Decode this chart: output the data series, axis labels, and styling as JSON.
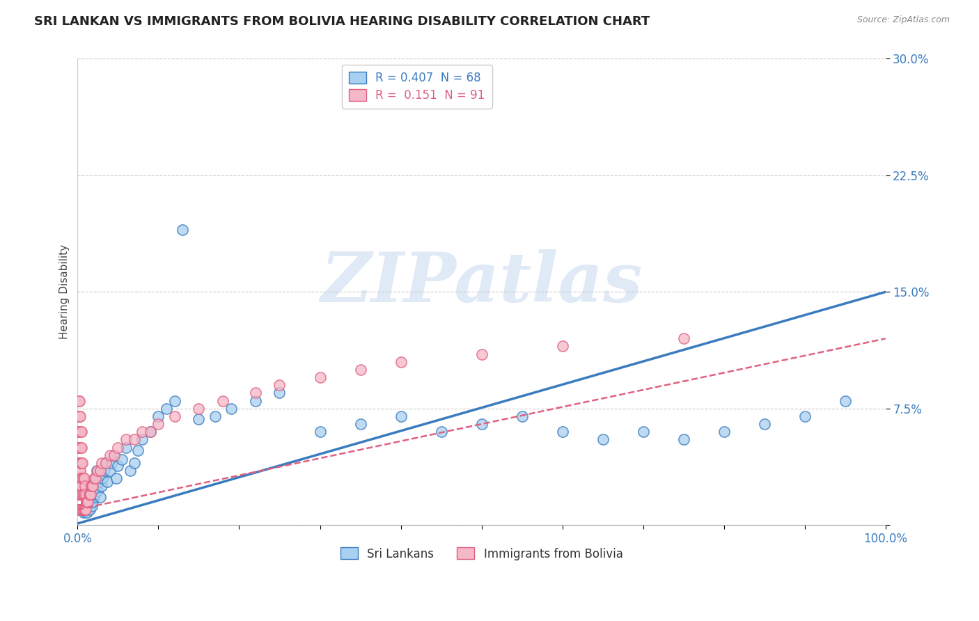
{
  "title": "SRI LANKAN VS IMMIGRANTS FROM BOLIVIA HEARING DISABILITY CORRELATION CHART",
  "source": "Source: ZipAtlas.com",
  "xlabel": "",
  "ylabel": "Hearing Disability",
  "xlim": [
    0,
    1.0
  ],
  "ylim": [
    0,
    0.3
  ],
  "xticks": [
    0.0,
    0.1,
    0.2,
    0.3,
    0.4,
    0.5,
    0.6,
    0.7,
    0.8,
    0.9,
    1.0
  ],
  "xticklabels": [
    "0.0%",
    "",
    "",
    "",
    "",
    "",
    "",
    "",
    "",
    "",
    "100.0%"
  ],
  "yticks": [
    0.0,
    0.075,
    0.15,
    0.225,
    0.3
  ],
  "yticklabels": [
    "",
    "7.5%",
    "15.0%",
    "22.5%",
    "30.0%"
  ],
  "blue_R": 0.407,
  "blue_N": 68,
  "pink_R": 0.151,
  "pink_N": 91,
  "blue_color": "#a8d0f0",
  "pink_color": "#f5b8c8",
  "blue_line_color": "#3a7bbf",
  "pink_line_color": "#e06080",
  "blue_scatter_x": [
    0.005,
    0.007,
    0.008,
    0.009,
    0.01,
    0.01,
    0.011,
    0.012,
    0.012,
    0.013,
    0.014,
    0.015,
    0.015,
    0.016,
    0.017,
    0.018,
    0.018,
    0.019,
    0.02,
    0.02,
    0.021,
    0.022,
    0.023,
    0.024,
    0.025,
    0.026,
    0.027,
    0.028,
    0.03,
    0.031,
    0.033,
    0.035,
    0.037,
    0.04,
    0.042,
    0.045,
    0.048,
    0.05,
    0.055,
    0.06,
    0.065,
    0.07,
    0.075,
    0.08,
    0.09,
    0.1,
    0.11,
    0.12,
    0.13,
    0.15,
    0.17,
    0.19,
    0.22,
    0.25,
    0.3,
    0.35,
    0.4,
    0.45,
    0.5,
    0.55,
    0.6,
    0.65,
    0.7,
    0.75,
    0.8,
    0.85,
    0.9,
    0.95
  ],
  "blue_scatter_y": [
    0.01,
    0.008,
    0.009,
    0.01,
    0.012,
    0.02,
    0.015,
    0.018,
    0.008,
    0.012,
    0.015,
    0.02,
    0.01,
    0.025,
    0.018,
    0.022,
    0.012,
    0.015,
    0.018,
    0.028,
    0.02,
    0.025,
    0.03,
    0.035,
    0.022,
    0.028,
    0.032,
    0.018,
    0.025,
    0.03,
    0.035,
    0.04,
    0.028,
    0.035,
    0.04,
    0.045,
    0.03,
    0.038,
    0.042,
    0.05,
    0.035,
    0.04,
    0.048,
    0.055,
    0.06,
    0.07,
    0.075,
    0.08,
    0.19,
    0.068,
    0.07,
    0.075,
    0.08,
    0.085,
    0.06,
    0.065,
    0.07,
    0.06,
    0.065,
    0.07,
    0.06,
    0.055,
    0.06,
    0.055,
    0.06,
    0.065,
    0.07,
    0.08
  ],
  "pink_scatter_x": [
    0.001,
    0.001,
    0.001,
    0.001,
    0.001,
    0.001,
    0.001,
    0.001,
    0.001,
    0.001,
    0.002,
    0.002,
    0.002,
    0.002,
    0.002,
    0.002,
    0.002,
    0.002,
    0.002,
    0.002,
    0.003,
    0.003,
    0.003,
    0.003,
    0.003,
    0.003,
    0.003,
    0.003,
    0.003,
    0.004,
    0.004,
    0.004,
    0.004,
    0.004,
    0.004,
    0.004,
    0.005,
    0.005,
    0.005,
    0.005,
    0.005,
    0.005,
    0.005,
    0.006,
    0.006,
    0.006,
    0.006,
    0.007,
    0.007,
    0.007,
    0.008,
    0.008,
    0.008,
    0.009,
    0.009,
    0.01,
    0.01,
    0.011,
    0.012,
    0.013,
    0.014,
    0.015,
    0.016,
    0.017,
    0.018,
    0.019,
    0.02,
    0.022,
    0.025,
    0.028,
    0.03,
    0.035,
    0.04,
    0.045,
    0.05,
    0.06,
    0.07,
    0.08,
    0.09,
    0.1,
    0.12,
    0.15,
    0.18,
    0.22,
    0.25,
    0.3,
    0.35,
    0.4,
    0.5,
    0.6,
    0.75
  ],
  "pink_scatter_y": [
    0.01,
    0.02,
    0.03,
    0.04,
    0.05,
    0.06,
    0.07,
    0.08,
    0.03,
    0.04,
    0.01,
    0.02,
    0.03,
    0.04,
    0.05,
    0.06,
    0.07,
    0.08,
    0.025,
    0.035,
    0.01,
    0.02,
    0.03,
    0.04,
    0.05,
    0.06,
    0.07,
    0.025,
    0.035,
    0.01,
    0.02,
    0.03,
    0.04,
    0.05,
    0.06,
    0.025,
    0.01,
    0.02,
    0.03,
    0.04,
    0.05,
    0.06,
    0.025,
    0.01,
    0.02,
    0.03,
    0.04,
    0.01,
    0.02,
    0.03,
    0.01,
    0.02,
    0.03,
    0.01,
    0.025,
    0.01,
    0.02,
    0.015,
    0.015,
    0.015,
    0.02,
    0.02,
    0.02,
    0.025,
    0.025,
    0.025,
    0.03,
    0.03,
    0.035,
    0.035,
    0.04,
    0.04,
    0.045,
    0.045,
    0.05,
    0.055,
    0.055,
    0.06,
    0.06,
    0.065,
    0.07,
    0.075,
    0.08,
    0.085,
    0.09,
    0.095,
    0.1,
    0.105,
    0.11,
    0.115,
    0.12
  ],
  "blue_trend": [
    0.0,
    0.001,
    0.15
  ],
  "pink_trend": [
    0.0,
    0.01,
    0.12
  ],
  "watermark_text": "ZIPatlas",
  "legend_labels": [
    "Sri Lankans",
    "Immigrants from Bolivia"
  ],
  "grid_color": "#cccccc",
  "bg_color": "#ffffff",
  "title_fontsize": 13,
  "label_fontsize": 11,
  "tick_fontsize": 12,
  "legend_fontsize": 12
}
